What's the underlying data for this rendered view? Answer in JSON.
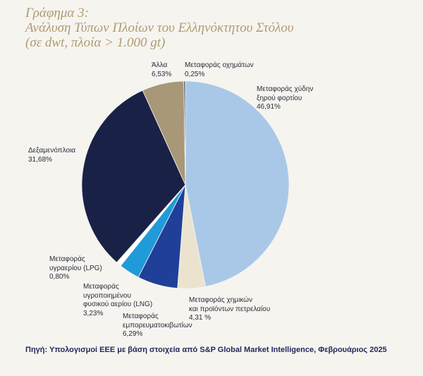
{
  "title": {
    "line1": "Γράφημα 3:",
    "line2": "Ανάλυση Τύπων Πλοίων του Ελληνόκτητου Στόλου",
    "line3": "(σε dwt, πλοία > 1.000 gt)"
  },
  "chart_data": {
    "type": "pie",
    "title": "Ανάλυση Τύπων Πλοίων του Ελληνόκτητου Στόλου",
    "slices": [
      {
        "label": "Μεταφοράς χύδην ξηρού φορτίου",
        "value": 46.91,
        "value_label": "46,91%",
        "color": "#a9c8e8"
      },
      {
        "label": "Μεταφοράς χημικών και προϊόντων πετρελαίου",
        "value": 4.31,
        "value_label": "4,31 %",
        "color": "#ece3cf"
      },
      {
        "label": "Μεταφοράς εμπορευματοκιβωτίων",
        "value": 6.29,
        "value_label": "6,29%",
        "color": "#1f3f99"
      },
      {
        "label": "Μεταφοράς υγροποιημένου φυσικού αερίου (LNG)",
        "value": 3.23,
        "value_label": "3,23%",
        "color": "#1e9bd8"
      },
      {
        "label": "Μεταφοράς υγραερίου (LPG)",
        "value": 0.8,
        "value_label": "0,80%",
        "color": "#ffffff"
      },
      {
        "label": "Δεξαμενόπλοια",
        "value": 31.68,
        "value_label": "31,68%",
        "color": "#1a2147"
      },
      {
        "label": "Άλλα",
        "value": 6.53,
        "value_label": "6,53%",
        "color": "#a89878"
      },
      {
        "label": "Μεταφοράς οχημάτων",
        "value": 0.25,
        "value_label": "0,25%",
        "color": "#5a5a6a"
      }
    ]
  },
  "labels": {
    "dry_bulk": [
      "Μεταφοράς χύδην",
      "ξηρού φορτίου",
      "46,91%"
    ],
    "chemicals": [
      "Μεταφοράς χημικών",
      "και προϊόντων πετρελαίου",
      "4,31 %"
    ],
    "containers": [
      "Μεταφοράς",
      "εμπορευματοκιβωτίων",
      "6,29%"
    ],
    "lng": [
      "Μεταφοράς",
      "υγροποιημένου",
      "φυσικού αερίου (LNG)",
      "3,23%"
    ],
    "lpg": [
      "Μεταφοράς",
      "υγραερίου (LPG)",
      "0,80%"
    ],
    "tankers": [
      "Δεξαμενόπλοια",
      "31,68%"
    ],
    "other": [
      "Άλλα",
      "6,53%"
    ],
    "vehicles": [
      "Μεταφοράς οχημάτων",
      "0,25%"
    ]
  },
  "source": "Πηγή: Υπολογισμοί ΕΕΕ με βάση στοιχεία από S&P Global Market Intelligence, Φεβρουάριος 2025"
}
